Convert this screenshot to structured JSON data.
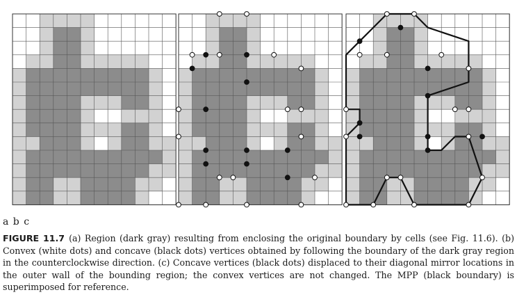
{
  "panel_labels": "a b c",
  "caption": {
    "label": "FIGURE 11.7",
    "text": "(a) Region (dark gray) resulting from enclosing the original boundary by cells (see Fig. 11.6). (b) Convex (white dots) and concave (black dots) vertices obtained by following the boundary of the dark gray region in the counterclockwise direction. (c) Concave vertices (black dots) displaced to their diagonal mirror locations in the outer wall of the bounding region; the convex vertices are not changed. The MPP (black boundary) is superimposed for reference."
  },
  "colors": {
    "dark_gray": "#8c8c8c",
    "light_gray": "#d2d2d2",
    "white": "#ffffff",
    "grid_line": "#555555",
    "vertex_black": "#111111"
  },
  "grid": {
    "columns": 12,
    "rows": 14,
    "dark_gray_rows": [
      "............",
      "...XX.......",
      "...XX.......",
      "...XX.......",
      ".XXXXXXXXX..",
      ".XXXXXXXXX..",
      ".XXXX...XX..",
      ".XXXX.......",
      ".XXXX...XX..",
      "..XXX...XX..",
      ".XXXXXXXXXX.",
      ".XXXXXXXXX..",
      ".XX..XXXX...",
      ".XX..XXXX..."
    ],
    "light_gray_rows": [
      "..LLLL......",
      "..L..L......",
      "..L..L......",
      ".LL..LLLLL..",
      "L.........L.",
      "L.........L.",
      "L....LLL..L.",
      "L....L..LLL.",
      "L....LLL..L.",
      "LL...L.L..LL",
      "L..........L",
      "L.........LL",
      "L..LL....LL.",
      "LLLLL....L.."
    ]
  },
  "vertices": {
    "convex": [
      [
        5,
        0
      ],
      [
        3,
        0
      ],
      [
        1,
        3
      ],
      [
        3,
        3
      ],
      [
        7,
        3
      ],
      [
        9,
        4
      ],
      [
        8,
        7
      ],
      [
        9,
        7
      ],
      [
        9,
        9
      ],
      [
        0,
        7
      ],
      [
        0,
        9
      ],
      [
        0,
        14
      ],
      [
        2,
        14
      ],
      [
        3,
        12
      ],
      [
        4,
        12
      ],
      [
        5,
        14
      ],
      [
        9,
        14
      ],
      [
        10,
        12
      ]
    ],
    "concave": [
      [
        2,
        3
      ],
      [
        1,
        4
      ],
      [
        5,
        3
      ],
      [
        5,
        5
      ],
      [
        2,
        7
      ],
      [
        2,
        10
      ],
      [
        5,
        10
      ],
      [
        2,
        11
      ],
      [
        5,
        11
      ],
      [
        8,
        10
      ],
      [
        8,
        12
      ]
    ],
    "displaced_concave": [
      [
        4,
        1
      ],
      [
        1,
        2
      ],
      [
        6,
        4
      ],
      [
        6,
        6
      ],
      [
        1,
        8
      ],
      [
        1,
        9
      ],
      [
        6,
        9
      ],
      [
        6,
        10
      ],
      [
        10,
        9
      ]
    ]
  },
  "mpp": [
    [
      3,
      0
    ],
    [
      5,
      0
    ],
    [
      6,
      1
    ],
    [
      9,
      2
    ],
    [
      9,
      5
    ],
    [
      6,
      6
    ],
    [
      6,
      9
    ],
    [
      6,
      10
    ],
    [
      7,
      10
    ],
    [
      8,
      9
    ],
    [
      9,
      9
    ],
    [
      10,
      12
    ],
    [
      9,
      14
    ],
    [
      5,
      14
    ],
    [
      4,
      12
    ],
    [
      3,
      12
    ],
    [
      2,
      14
    ],
    [
      0,
      14
    ],
    [
      0,
      9
    ],
    [
      1,
      8
    ],
    [
      1,
      7
    ],
    [
      0,
      7
    ],
    [
      0,
      3
    ],
    [
      1,
      2
    ],
    [
      2,
      1
    ]
  ]
}
